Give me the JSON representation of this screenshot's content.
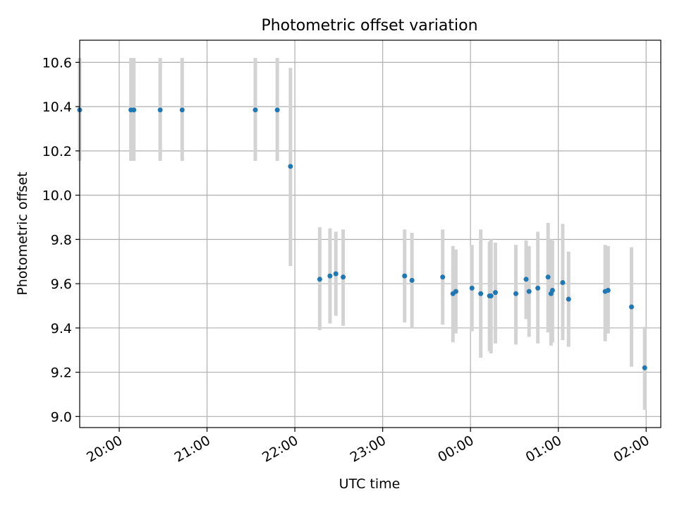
{
  "chart_data": {
    "type": "scatter",
    "title": "Photometric offset variation",
    "xlabel": "UTC time",
    "ylabel": "Photometric offset",
    "xlim": [
      "19:33",
      "02:10"
    ],
    "ylim": [
      8.95,
      10.7
    ],
    "x_ticks": [
      "20:00",
      "21:00",
      "22:00",
      "23:00",
      "00:00",
      "01:00",
      "02:00"
    ],
    "y_ticks": [
      "9.0",
      "9.2",
      "9.4",
      "9.6",
      "9.8",
      "10.0",
      "10.2",
      "10.4",
      "10.6"
    ],
    "grid": true,
    "legend": "none",
    "colors": {
      "points": "#1f77b4",
      "errorbars": "#d3d3d3",
      "grid": "#b0b0b0"
    },
    "points": [
      {
        "x": "19:33",
        "y": 10.385,
        "yerr": [
          10.155,
          10.62
        ]
      },
      {
        "x": "20:08",
        "y": 10.385,
        "yerr": [
          10.155,
          10.62
        ]
      },
      {
        "x": "20:10",
        "y": 10.385,
        "yerr": [
          10.155,
          10.62
        ]
      },
      {
        "x": "20:28",
        "y": 10.385,
        "yerr": [
          10.155,
          10.62
        ]
      },
      {
        "x": "20:43",
        "y": 10.385,
        "yerr": [
          10.155,
          10.62
        ]
      },
      {
        "x": "21:33",
        "y": 10.385,
        "yerr": [
          10.155,
          10.62
        ]
      },
      {
        "x": "21:48",
        "y": 10.385,
        "yerr": [
          10.155,
          10.62
        ]
      },
      {
        "x": "21:57",
        "y": 10.13,
        "yerr": [
          9.68,
          10.575
        ]
      },
      {
        "x": "22:17",
        "y": 9.62,
        "yerr": [
          9.39,
          9.855
        ]
      },
      {
        "x": "22:24",
        "y": 9.635,
        "yerr": [
          9.42,
          9.85
        ]
      },
      {
        "x": "22:28",
        "y": 9.645,
        "yerr": [
          9.455,
          9.835
        ]
      },
      {
        "x": "22:33",
        "y": 9.63,
        "yerr": [
          9.41,
          9.845
        ]
      },
      {
        "x": "23:15",
        "y": 9.635,
        "yerr": [
          9.425,
          9.845
        ]
      },
      {
        "x": "23:20",
        "y": 9.615,
        "yerr": [
          9.4,
          9.83
        ]
      },
      {
        "x": "23:41",
        "y": 9.63,
        "yerr": [
          9.415,
          9.845
        ]
      },
      {
        "x": "23:48",
        "y": 9.555,
        "yerr": [
          9.335,
          9.77
        ]
      },
      {
        "x": "23:50",
        "y": 9.565,
        "yerr": [
          9.375,
          9.755
        ]
      },
      {
        "x": "00:01",
        "y": 9.58,
        "yerr": [
          9.385,
          9.775
        ]
      },
      {
        "x": "00:07",
        "y": 9.555,
        "yerr": [
          9.265,
          9.845
        ]
      },
      {
        "x": "00:13",
        "y": 9.545,
        "yerr": [
          9.295,
          9.79
        ]
      },
      {
        "x": "00:14",
        "y": 9.545,
        "yerr": [
          9.285,
          9.8
        ]
      },
      {
        "x": "00:17",
        "y": 9.56,
        "yerr": [
          9.33,
          9.785
        ]
      },
      {
        "x": "00:31",
        "y": 9.555,
        "yerr": [
          9.325,
          9.775
        ]
      },
      {
        "x": "00:38",
        "y": 9.62,
        "yerr": [
          9.44,
          9.795
        ]
      },
      {
        "x": "00:40",
        "y": 9.565,
        "yerr": [
          9.36,
          9.77
        ]
      },
      {
        "x": "00:46",
        "y": 9.58,
        "yerr": [
          9.33,
          9.835
        ]
      },
      {
        "x": "00:53",
        "y": 9.63,
        "yerr": [
          9.38,
          9.875
        ]
      },
      {
        "x": "00:55",
        "y": 9.555,
        "yerr": [
          9.32,
          9.8
        ]
      },
      {
        "x": "00:56",
        "y": 9.57,
        "yerr": [
          9.335,
          9.795
        ]
      },
      {
        "x": "01:03",
        "y": 9.605,
        "yerr": [
          9.345,
          9.87
        ]
      },
      {
        "x": "01:07",
        "y": 9.53,
        "yerr": [
          9.315,
          9.745
        ]
      },
      {
        "x": "01:32",
        "y": 9.565,
        "yerr": [
          9.34,
          9.775
        ]
      },
      {
        "x": "01:34",
        "y": 9.57,
        "yerr": [
          9.375,
          9.77
        ]
      },
      {
        "x": "01:50",
        "y": 9.495,
        "yerr": [
          9.225,
          9.765
        ]
      },
      {
        "x": "01:59",
        "y": 9.22,
        "yerr": [
          9.03,
          9.405
        ]
      }
    ]
  }
}
